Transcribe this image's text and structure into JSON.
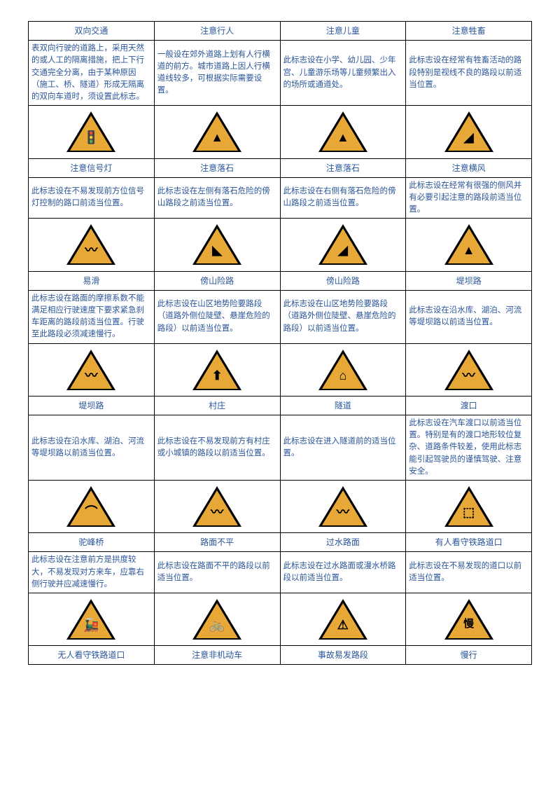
{
  "rows": [
    {
      "type": "title",
      "cells": [
        "双向交通",
        "注意行人",
        "注意儿童",
        "注意牲畜"
      ]
    },
    {
      "type": "desc",
      "cells": [
        "表双向行驶的道路上，采用天然的或人工的隔离措施，把上下行交通完全分离，由于某种原因（施工、桥、隧道）形成无隔离的双向车道时，须设置此标志。",
        "一般设在郊外道路上划有人行横道的前方。城市道路上因人行横道线较多，可根据实际需要设置。",
        "此标志设在小学、幼儿园、少年宫、儿童游乐场等儿童频繁出入的场所或通道处。",
        "此标志设在经常有牲畜活动的路段特别是视线不良的路段以前适当位置。"
      ]
    },
    {
      "type": "icon",
      "symbols": [
        "🚦",
        "▲",
        "▲",
        "◢"
      ]
    },
    {
      "type": "title",
      "cells": [
        "注意信号灯",
        "注意落石",
        "注意落石",
        "注意横风"
      ]
    },
    {
      "type": "desc",
      "cells": [
        "此标志设在不易发现前方位信号灯控制的路口前适当位置。",
        "此标志设在左侧有落石危险的傍山路段之前适当位置。",
        "此标志设在右侧有落石危险的傍山路段之前适当位置。",
        "此标志设在经常有很强的侧风并有必要引起注意的路段前适当位置。"
      ]
    },
    {
      "type": "icon",
      "symbols": [
        "〰",
        "◣",
        "◢",
        "▲"
      ]
    },
    {
      "type": "title",
      "cells": [
        "易滑",
        "傍山险路",
        "傍山险路",
        "堤坝路"
      ]
    },
    {
      "type": "desc",
      "cells": [
        "此标志设在路面的摩擦系数不能满足相应行驶速度下要求紧急刹车距离的路段前适当位置。行驶至此路段必须减速慢行。",
        "此标志设在山区地势险要路段（道路外侧位陡壁、悬崖危险的路段）以前适当位置。",
        "此标志设在山区地势险要路段（道路外侧位陡壁、悬崖危险的路段）以前适当位置。",
        "此标志设在沿水库、湖泊、河流等堤坝路以前适当位置。"
      ]
    },
    {
      "type": "icon",
      "symbols": [
        "〰",
        "⬆",
        "⌂",
        "〰"
      ]
    },
    {
      "type": "title",
      "cells": [
        "堤坝路",
        "村庄",
        "隧道",
        "渡口"
      ]
    },
    {
      "type": "desc",
      "cells": [
        "此标志设在沿水库、湖泊、河流等堤坝路以前适当位置。",
        "此标志设在不易发现前方有村庄或小城镇的路段以前适当位置。",
        "此标志设在进入隧道前的适当位置。",
        "此标志设在汽车渡口以前适当位置。特别是有的渡口地形较位复杂、道路条件较差，使用此标志能引起驾驶员的谨慎驾驶、注意安全。"
      ]
    },
    {
      "type": "icon",
      "symbols": [
        "⌒",
        "〰",
        "〰",
        "⬚"
      ]
    },
    {
      "type": "title",
      "cells": [
        "驼峰桥",
        "路面不平",
        "过水路面",
        "有人看守铁路道口"
      ]
    },
    {
      "type": "desc",
      "cells": [
        "此标志设在注意前方是拱度较大，不易发现对方来车，应靠右侧行驶并应减速慢行。",
        "此标志设在路面不平的路段以前适当位置。",
        "此标志设在过水路面或漫水桥路段以前适当位置。",
        "此标志设在不易发现的道口以前适当位置。"
      ]
    },
    {
      "type": "icon",
      "symbols": [
        "🚂",
        "🚲",
        "⚠",
        "慢"
      ]
    },
    {
      "type": "title",
      "cells": [
        "无人看守铁路道口",
        "注意非机动车",
        "事故易发路段",
        "慢行"
      ]
    }
  ],
  "colors": {
    "text": "#2a5599",
    "border": "#000000",
    "sign_fill": "#e8a838",
    "sign_border": "#000000"
  }
}
